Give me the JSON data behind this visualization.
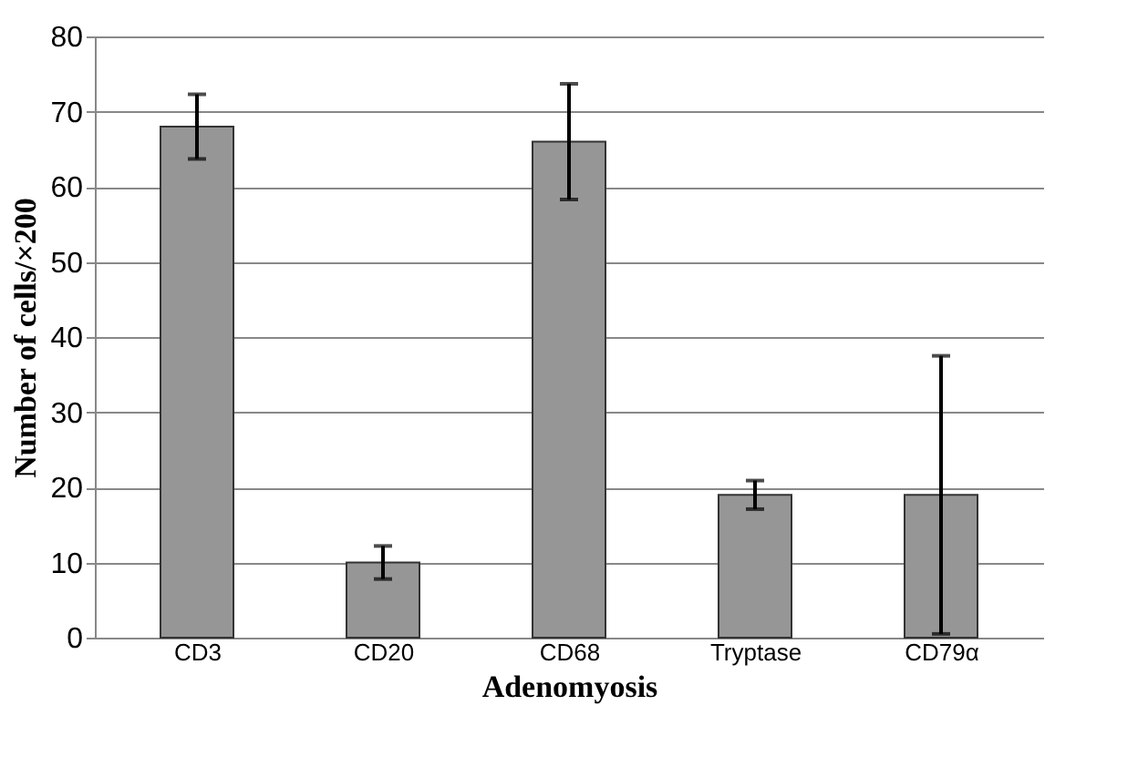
{
  "chart_data": {
    "type": "bar",
    "xlabel": "Adenomyosis",
    "ylabel": "Number of cells/×200",
    "categories": [
      "CD3",
      "CD20",
      "CD68",
      "Tryptase",
      "CD79α"
    ],
    "values": [
      68,
      10,
      66,
      19,
      19
    ],
    "errors": [
      4.3,
      2.2,
      7.7,
      1.9,
      18.5
    ],
    "color": "#969696",
    "ylim": [
      0,
      80
    ],
    "yticks": [
      0,
      10,
      20,
      30,
      40,
      50,
      60,
      70,
      80
    ],
    "grid": "y"
  }
}
